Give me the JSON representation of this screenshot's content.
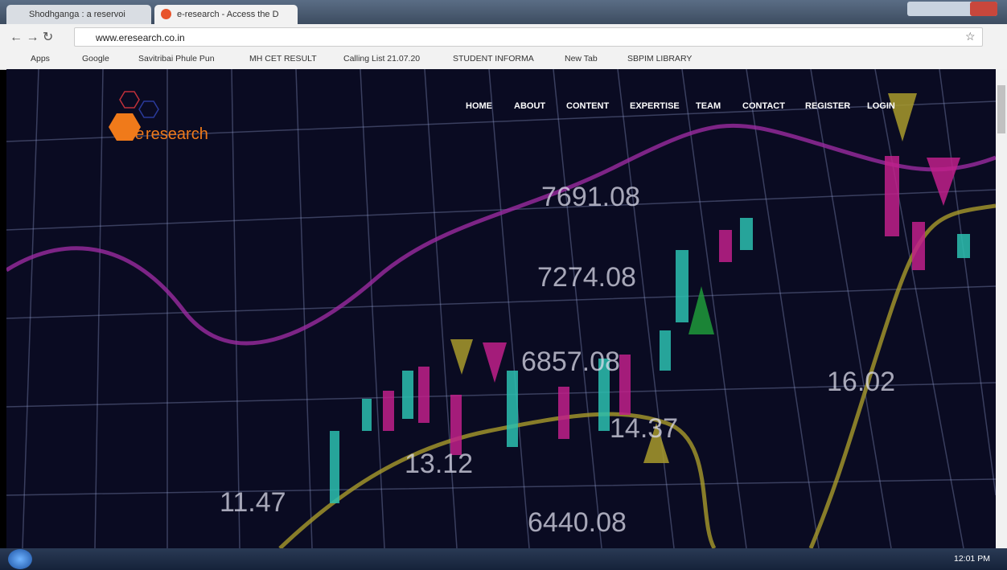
{
  "browser": {
    "tabs": [
      "Shodhganga : a reservoi",
      "e-research - Access the D"
    ],
    "url": "www.eresearch.co.in",
    "bookmarks": [
      "Apps",
      "Google",
      "Savitribai Phule Pun",
      "MH CET RESULT",
      "Calling List 21.07.20",
      "STUDENT INFORMA",
      "New Tab",
      "SBPIM LIBRARY"
    ]
  },
  "site": {
    "logo_mark": "e",
    "logo_text": "research",
    "nav": [
      "HOME",
      "ABOUT",
      "CONTENT",
      "EXPERTISE",
      "TEAM",
      "CONTACT",
      "REGISTER",
      "LOGIN"
    ],
    "background_numbers": [
      "7691.08",
      "7274.08",
      "6857.08",
      "6440.08",
      "16.02",
      "14.37",
      "13.12",
      "11.47"
    ]
  },
  "taskbar": {
    "time": "12:01 PM"
  }
}
